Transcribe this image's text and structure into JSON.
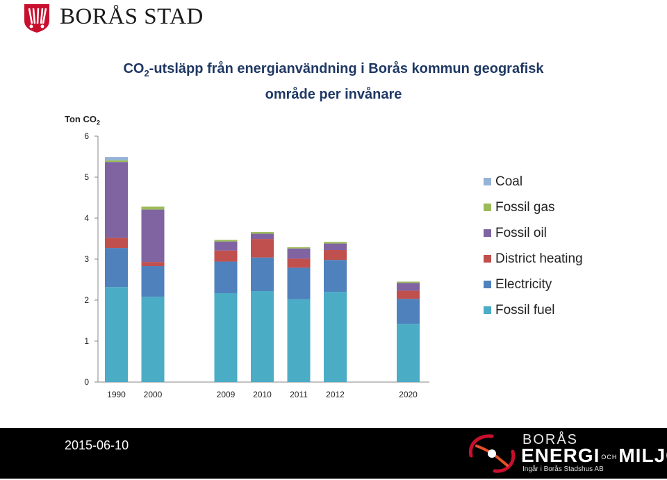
{
  "header": {
    "brand": "BORÅS STAD"
  },
  "title": {
    "co": "CO",
    "sub": "2",
    "rest_line1": "-utsläpp från energianvändning i  Borås kommun geografisk",
    "line2": "område per invånare"
  },
  "ylabel": {
    "main": "Ton CO",
    "sub": "2"
  },
  "chart_data": {
    "type": "bar",
    "stacked": true,
    "categories": [
      "1990",
      "2000",
      "2009",
      "2010",
      "2011",
      "2012",
      "2020"
    ],
    "category_slots": [
      0,
      1,
      3,
      4,
      5,
      6,
      8
    ],
    "ylim": [
      0,
      6
    ],
    "yticks": [
      0,
      1,
      2,
      3,
      4,
      5,
      6
    ],
    "grid": false,
    "legend_position": "right",
    "series": [
      {
        "name": "Fossil fuel",
        "color": "#4bacc6",
        "values": [
          2.32,
          2.08,
          2.17,
          2.22,
          2.02,
          2.2,
          1.42
        ]
      },
      {
        "name": "Electricity",
        "color": "#4f81bd",
        "values": [
          0.95,
          0.75,
          0.77,
          0.82,
          0.77,
          0.78,
          0.61
        ]
      },
      {
        "name": "District heating",
        "color": "#c0504d",
        "values": [
          0.25,
          0.1,
          0.27,
          0.45,
          0.22,
          0.24,
          0.2
        ]
      },
      {
        "name": "Fossil oil",
        "color": "#8064a2",
        "values": [
          1.85,
          1.28,
          0.22,
          0.13,
          0.25,
          0.16,
          0.19
        ]
      },
      {
        "name": "Fossil gas",
        "color": "#9bbb59",
        "values": [
          0.04,
          0.07,
          0.04,
          0.04,
          0.03,
          0.04,
          0.03
        ]
      },
      {
        "name": "Coal",
        "color": "#95b3d7",
        "values": [
          0.08,
          0.0,
          0.0,
          0.0,
          0.0,
          0.0,
          0.0
        ]
      }
    ],
    "legend_order": [
      "Coal",
      "Fossil gas",
      "Fossil oil",
      "District heating",
      "Electricity",
      "Fossil fuel"
    ]
  },
  "footer": {
    "date": "2015-06-10",
    "logo_top": "BORÅS",
    "logo_main": "ENERGI",
    "logo_mid": "OCH",
    "logo_end": "MILJÖ",
    "logo_sub": "Ingår i Borås Stadshus AB"
  },
  "colors": {
    "title": "#1f3864",
    "footer_bg": "#000000",
    "logo_red": "#c8102e"
  }
}
